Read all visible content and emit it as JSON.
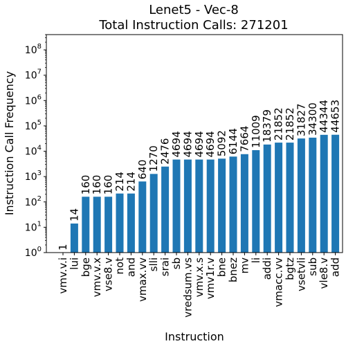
{
  "chart_data": {
    "type": "bar",
    "title": "Lenet5 - Vec-8",
    "subtitle": "Total Instruction Calls: 271201",
    "xlabel": "Instruction",
    "ylabel": "Instruction Call Frequency",
    "yscale": "log",
    "ylim": [
      1,
      400000000
    ],
    "yticks": [
      1,
      10,
      100,
      1000,
      10000,
      100000,
      1000000,
      10000000,
      100000000
    ],
    "ytick_bases": [
      "10",
      "10",
      "10",
      "10",
      "10",
      "10",
      "10",
      "10",
      "10"
    ],
    "ytick_exps": [
      "0",
      "1",
      "2",
      "3",
      "4",
      "5",
      "6",
      "7",
      "8"
    ],
    "bar_color": "#1f77b4",
    "categories": [
      "vmv.v.i",
      "lui",
      "bge",
      "vmv.v.x",
      "vse8.v",
      "not",
      "and",
      "vmax.vv",
      "slli",
      "srai",
      "sb",
      "vredsum.vs",
      "vmv.x.s",
      "vmv1r.v",
      "bne",
      "bnez",
      "mv",
      "li",
      "addi",
      "vmacc.vv",
      "bgtz",
      "vsetvli",
      "sub",
      "vle8.v",
      "add"
    ],
    "values": [
      1,
      14,
      160,
      160,
      160,
      214,
      214,
      640,
      1270,
      2476,
      4694,
      4694,
      4694,
      4694,
      5092,
      6144,
      7664,
      11009,
      18379,
      21852,
      21852,
      31827,
      34300,
      44344,
      44653
    ],
    "data_labels": [
      "1",
      "14",
      "160",
      "160",
      "160",
      "214",
      "214",
      "640",
      "1270",
      "2476",
      "4694",
      "4694",
      "4694",
      "4694",
      "5092",
      "6144",
      "7664",
      "11009",
      "18379",
      "21852",
      "21852",
      "31827",
      "34300",
      "44344",
      "44653"
    ],
    "grid": false,
    "legend": "none"
  }
}
